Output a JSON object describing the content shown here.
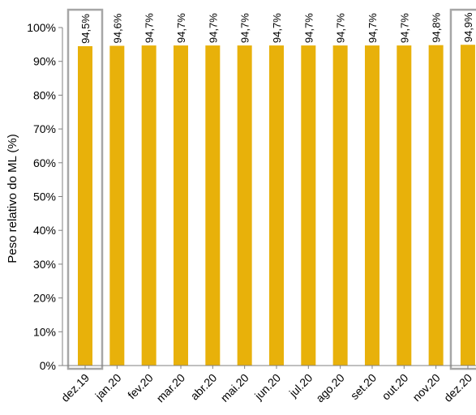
{
  "chart_data": {
    "type": "bar",
    "categories": [
      "dez.19",
      "jan.20",
      "fev.20",
      "mar.20",
      "abr.20",
      "mai.20",
      "jun.20",
      "jul.20",
      "ago.20",
      "set.20",
      "out.20",
      "nov.20",
      "dez.20"
    ],
    "values": [
      94.5,
      94.6,
      94.7,
      94.7,
      94.7,
      94.7,
      94.7,
      94.7,
      94.7,
      94.7,
      94.7,
      94.8,
      94.9
    ],
    "data_labels": [
      "94,5%",
      "94,6%",
      "94,7%",
      "94,7%",
      "94,7%",
      "94,7%",
      "94,7%",
      "94,7%",
      "94,7%",
      "94,7%",
      "94,7%",
      "94,8%",
      "94,9%"
    ],
    "ylabel": "Peso relativo do ML (%)",
    "ylim": [
      0,
      100
    ],
    "yticks": [
      0,
      10,
      20,
      30,
      40,
      50,
      60,
      70,
      80,
      90,
      100
    ],
    "ytick_labels": [
      "0%",
      "10%",
      "20%",
      "30%",
      "40%",
      "50%",
      "60%",
      "70%",
      "80%",
      "90%",
      "100%"
    ],
    "highlighted_categories": [
      "dez.19",
      "dez.20"
    ],
    "grid": false,
    "legend": "none",
    "bar_color": "#E8B10A",
    "highlight_box_color": "#A6A6A6"
  }
}
